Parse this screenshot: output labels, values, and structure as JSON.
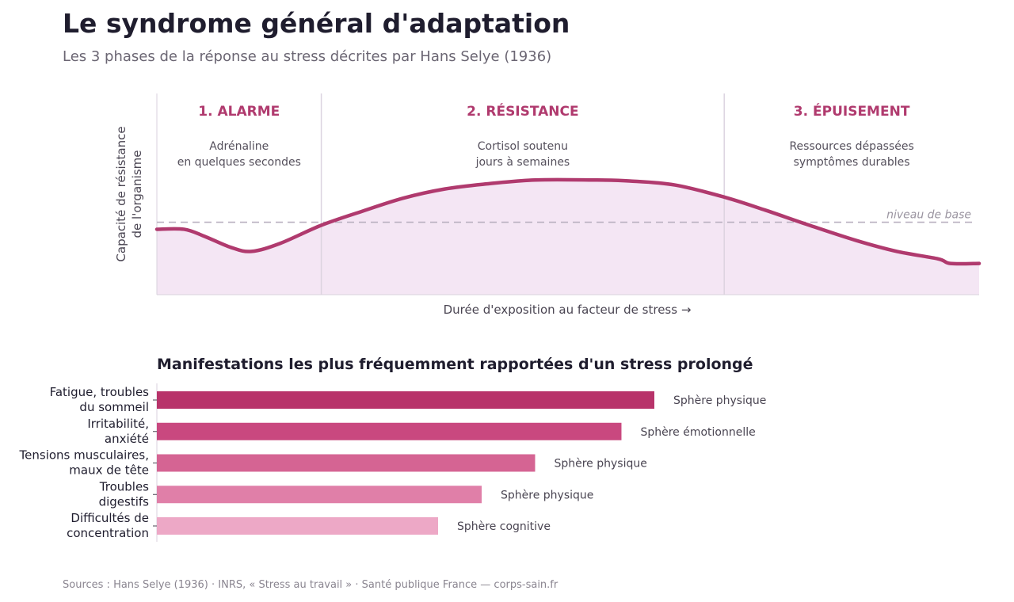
{
  "header": {
    "title": "Le syndrome général d'adaptation",
    "subtitle": "Les 3 phases de la réponse au stress décrites par Hans Selye (1936)"
  },
  "footer": {
    "source": "Sources : Hans Selye (1936) · INRS, « Stress au travail » · Santé publique France — corps-sain.fr"
  },
  "colors": {
    "accent": "#b03a6e",
    "curve_fill": "#f4e6f4",
    "baseline_line": "#b9b0c0",
    "phase_divider": "#dcd4e0",
    "bars": [
      "#b8336a",
      "#c9487f",
      "#d56493",
      "#e07fa8",
      "#eda8c6"
    ]
  },
  "chart_data": [
    {
      "type": "area",
      "title": "",
      "xlabel": "Durée d'exposition au facteur de stress →",
      "ylabel": [
        "Capacité de résistance",
        "de l'organisme"
      ],
      "grid": false,
      "baseline": {
        "label": "niveau de base",
        "value": 0.36
      },
      "ylim": [
        0,
        1
      ],
      "xlim": [
        0,
        1
      ],
      "phases": [
        {
          "name": "1. ALARME",
          "desc": [
            "Adrénaline",
            "en quelques secondes"
          ],
          "start": 0.0,
          "end": 0.2
        },
        {
          "name": "2. RÉSISTANCE",
          "desc": [
            "Cortisol soutenu",
            "jours à semaines"
          ],
          "start": 0.2,
          "end": 0.69
        },
        {
          "name": "3. ÉPUISEMENT",
          "desc": [
            "Ressources dépassées",
            "symptômes durables"
          ],
          "start": 0.69,
          "end": 1.0
        }
      ],
      "x": [
        0,
        0.033,
        0.058,
        0.09,
        0.115,
        0.15,
        0.2,
        0.25,
        0.3,
        0.35,
        0.4,
        0.46,
        0.53,
        0.575,
        0.63,
        0.69,
        0.74,
        0.79,
        0.85,
        0.9,
        0.95,
        0.965,
        1.0
      ],
      "y": [
        0.325,
        0.325,
        0.29,
        0.235,
        0.215,
        0.255,
        0.345,
        0.415,
        0.48,
        0.525,
        0.55,
        0.57,
        0.57,
        0.565,
        0.545,
        0.485,
        0.42,
        0.35,
        0.27,
        0.215,
        0.178,
        0.155,
        0.155
      ]
    },
    {
      "type": "bar",
      "orientation": "horizontal",
      "title": "Manifestations les plus fréquemment rapportées d'un stress prolongé",
      "categories": [
        [
          "Fatigue, troubles",
          "du sommeil"
        ],
        [
          "Irritabilité,",
          "anxiété"
        ],
        [
          "Tensions musculaires,",
          "maux de tête"
        ],
        [
          "Troubles",
          "digestifs"
        ],
        [
          "Difficultés de",
          "concentration"
        ]
      ],
      "values": [
        60.5,
        56.5,
        46,
        39.5,
        34.2
      ],
      "xlim": [
        0,
        100
      ],
      "labels": [
        "Sphère physique",
        "Sphère émotionnelle",
        "Sphère physique",
        "Sphère physique",
        "Sphère cognitive"
      ]
    }
  ]
}
